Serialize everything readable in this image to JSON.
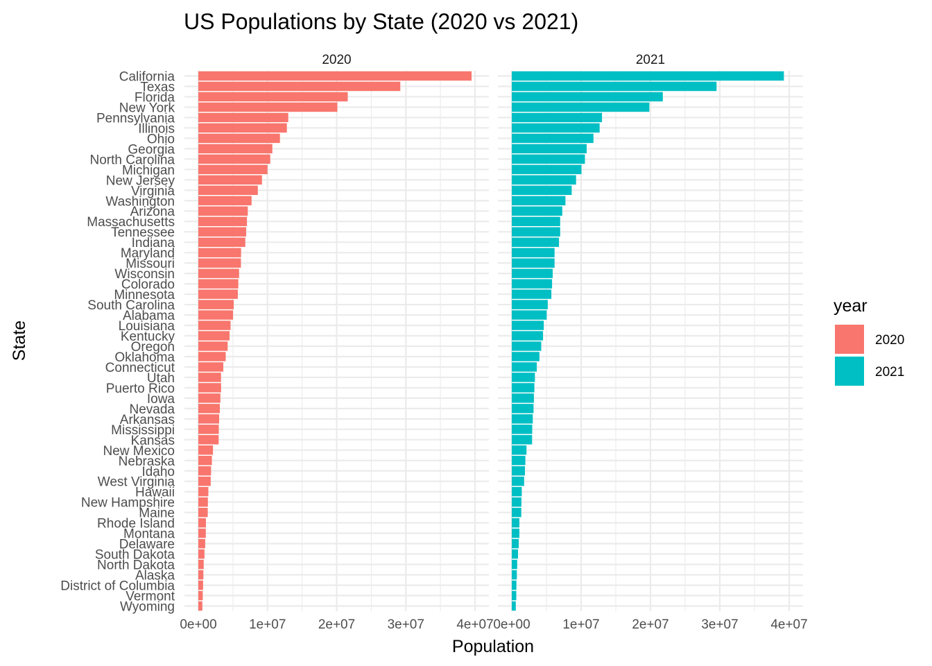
{
  "chart_data": {
    "type": "bar",
    "orientation": "horizontal",
    "title": "US Populations by State (2020 vs 2021)",
    "xlabel": "Population",
    "ylabel": "State",
    "xlim": [
      0,
      40000000
    ],
    "x_ticks": [
      "0e+00",
      "1e+07",
      "2e+07",
      "3e+07",
      "4e+07"
    ],
    "grid": true,
    "facets": [
      "2020",
      "2021"
    ],
    "legend": {
      "title": "year",
      "position": "right"
    },
    "categories": [
      "California",
      "Texas",
      "Florida",
      "New York",
      "Pennsylvania",
      "Illinois",
      "Ohio",
      "Georgia",
      "North Carolina",
      "Michigan",
      "New Jersey",
      "Virginia",
      "Washington",
      "Arizona",
      "Massachusetts",
      "Tennessee",
      "Indiana",
      "Maryland",
      "Missouri",
      "Wisconsin",
      "Colorado",
      "Minnesota",
      "South Carolina",
      "Alabama",
      "Louisiana",
      "Kentucky",
      "Oregon",
      "Oklahoma",
      "Connecticut",
      "Utah",
      "Puerto Rico",
      "Iowa",
      "Nevada",
      "Arkansas",
      "Mississippi",
      "Kansas",
      "New Mexico",
      "Nebraska",
      "Idaho",
      "West Virginia",
      "Hawaii",
      "New Hampshire",
      "Maine",
      "Rhode Island",
      "Montana",
      "Delaware",
      "South Dakota",
      "North Dakota",
      "Alaska",
      "District of Columbia",
      "Vermont",
      "Wyoming"
    ],
    "series": [
      {
        "name": "2020",
        "color": "#F8766D",
        "values": [
          39500000,
          29200000,
          21600000,
          20100000,
          13000000,
          12800000,
          11800000,
          10700000,
          10400000,
          10000000,
          9200000,
          8600000,
          7700000,
          7150000,
          7030000,
          6920000,
          6790000,
          6180000,
          6160000,
          5890000,
          5780000,
          5710000,
          5120000,
          5020000,
          4660000,
          4510000,
          4240000,
          3960000,
          3610000,
          3280000,
          3290000,
          3190000,
          3110000,
          3010000,
          2960000,
          2940000,
          2120000,
          1960000,
          1840000,
          1790000,
          1450000,
          1380000,
          1360000,
          1100000,
          1080000,
          990000,
          890000,
          780000,
          730000,
          690000,
          640000,
          580000
        ]
      },
      {
        "name": "2021",
        "color": "#00BFC4",
        "values": [
          39240000,
          29530000,
          21780000,
          19840000,
          13010000,
          12670000,
          11780000,
          10800000,
          10550000,
          10050000,
          9270000,
          8640000,
          7740000,
          7280000,
          6980000,
          6980000,
          6810000,
          6170000,
          6170000,
          5900000,
          5810000,
          5710000,
          5190000,
          5040000,
          4620000,
          4510000,
          4250000,
          3990000,
          3610000,
          3340000,
          3260000,
          3190000,
          3140000,
          3030000,
          2950000,
          2930000,
          2120000,
          1960000,
          1900000,
          1780000,
          1440000,
          1390000,
          1370000,
          1100000,
          1100000,
          1000000,
          900000,
          780000,
          730000,
          670000,
          650000,
          580000
        ]
      }
    ]
  }
}
